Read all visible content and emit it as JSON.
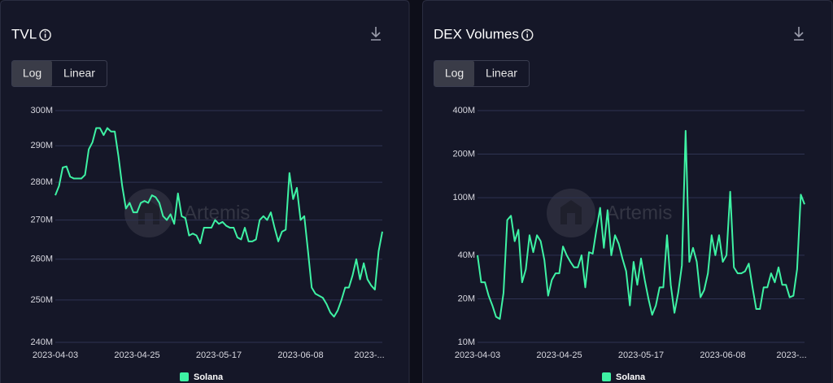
{
  "chart_data": [
    {
      "type": "line",
      "title": "TVL",
      "toggle": [
        "Log",
        "Linear"
      ],
      "log_scale": true,
      "grid": true,
      "watermark": "Artemis",
      "categories": [
        "2023-04-03",
        null,
        null,
        null,
        null,
        null,
        null,
        null,
        null,
        null,
        null,
        null,
        null,
        null,
        null,
        null,
        null,
        null,
        null,
        null,
        null,
        null,
        "2023-04-25",
        null,
        null,
        null,
        null,
        null,
        null,
        null,
        null,
        null,
        null,
        null,
        null,
        null,
        null,
        null,
        null,
        null,
        null,
        null,
        null,
        null,
        "2023-05-17",
        null,
        null,
        null,
        null,
        null,
        null,
        null,
        null,
        null,
        null,
        null,
        null,
        null,
        null,
        null,
        null,
        null,
        null,
        null,
        null,
        null,
        "2023-06-08",
        null,
        null,
        null,
        null,
        null,
        null,
        null,
        null,
        null,
        null,
        null,
        null,
        null,
        null,
        null,
        null,
        null,
        null,
        null,
        null,
        null,
        "2023-..."
      ],
      "series": [
        {
          "name": "Solana",
          "color": "#3ef2a4",
          "values": [
            276500000.0,
            279000000.0,
            284000000.0,
            284300000.0,
            281500000.0,
            281000000.0,
            281000000.0,
            281000000.0,
            282000000.0,
            289000000.0,
            291000000.0,
            295000000.0,
            295000000.0,
            293000000.0,
            295000000.0,
            294000000.0,
            294000000.0,
            287000000.0,
            279000000.0,
            273000000.0,
            274500000.0,
            272000000.0,
            272000000.0,
            274500000.0,
            275000000.0,
            274500000.0,
            276500000.0,
            276000000.0,
            274500000.0,
            271000000.0,
            270000000.0,
            271500000.0,
            269000000.0,
            277000000.0,
            271000000.0,
            270500000.0,
            266000000.0,
            266500000.0,
            266000000.0,
            264000000.0,
            268000000.0,
            268000000.0,
            268000000.0,
            270000000.0,
            269000000.0,
            269500000.0,
            268500000.0,
            268000000.0,
            268000000.0,
            265500000.0,
            265000000.0,
            268000000.0,
            264500000.0,
            264500000.0,
            265000000.0,
            270000000.0,
            271000000.0,
            270000000.0,
            272000000.0,
            268000000.0,
            264500000.0,
            267000000.0,
            267500000.0,
            282500000.0,
            275500000.0,
            278500000.0,
            270000000.0,
            271000000.0,
            262000000.0,
            253000000.0,
            251500000.0,
            251000000.0,
            250500000.0,
            249000000.0,
            247000000.0,
            246000000.0,
            247500000.0,
            250000000.0,
            253000000.0,
            253000000.0,
            256000000.0,
            260000000.0,
            255000000.0,
            259000000.0,
            255000000.0,
            253500000.0,
            252500000.0,
            262000000.0,
            267000000.0
          ]
        }
      ],
      "ylim": [
        240000000.0,
        300000000.0
      ],
      "yticks": [
        {
          "value": 240000000.0,
          "label": "240M"
        },
        {
          "value": 250000000.0,
          "label": "250M"
        },
        {
          "value": 260000000.0,
          "label": "260M"
        },
        {
          "value": 270000000.0,
          "label": "270M"
        },
        {
          "value": 280000000.0,
          "label": "280M"
        },
        {
          "value": 290000000.0,
          "label": "290M"
        },
        {
          "value": 300000000.0,
          "label": "300M"
        }
      ]
    },
    {
      "type": "line",
      "title": "DEX Volumes",
      "toggle": [
        "Log",
        "Linear"
      ],
      "log_scale": true,
      "grid": true,
      "watermark": "Artemis",
      "categories": [
        "2023-04-03",
        null,
        null,
        null,
        null,
        null,
        null,
        null,
        null,
        null,
        null,
        null,
        null,
        null,
        null,
        null,
        null,
        null,
        null,
        null,
        null,
        null,
        "2023-04-25",
        null,
        null,
        null,
        null,
        null,
        null,
        null,
        null,
        null,
        null,
        null,
        null,
        null,
        null,
        null,
        null,
        null,
        null,
        null,
        null,
        null,
        "2023-05-17",
        null,
        null,
        null,
        null,
        null,
        null,
        null,
        null,
        null,
        null,
        null,
        null,
        null,
        null,
        null,
        null,
        null,
        null,
        null,
        null,
        null,
        "2023-06-08",
        null,
        null,
        null,
        null,
        null,
        null,
        null,
        null,
        null,
        null,
        null,
        null,
        null,
        null,
        null,
        null,
        null,
        null,
        null,
        null,
        null,
        "2023-..."
      ],
      "series": [
        {
          "name": "Solana",
          "color": "#3ef2a4",
          "values": [
            40000000.0,
            26000000.0,
            26000000.0,
            21000000.0,
            18000000.0,
            15000000.0,
            14500000.0,
            22000000.0,
            70000000.0,
            75000000.0,
            50000000.0,
            60000000.0,
            26000000.0,
            32000000.0,
            55000000.0,
            42000000.0,
            55000000.0,
            50000000.0,
            37000000.0,
            21000000.0,
            27000000.0,
            30000000.0,
            30000000.0,
            46000000.0,
            40000000.0,
            36000000.0,
            33000000.0,
            33000000.0,
            40000000.0,
            24000000.0,
            42000000.0,
            41000000.0,
            60000000.0,
            85000000.0,
            45000000.0,
            82000000.0,
            40000000.0,
            55000000.0,
            48000000.0,
            38000000.0,
            31000000.0,
            18000000.0,
            36000000.0,
            25000000.0,
            38000000.0,
            27000000.0,
            20000000.0,
            15500000.0,
            18000000.0,
            24000000.0,
            24000000.0,
            55000000.0,
            25000000.0,
            16000000.0,
            22000000.0,
            34000000.0,
            290000000.0,
            36000000.0,
            45000000.0,
            36000000.0,
            20500000.0,
            23000000.0,
            30000000.0,
            55000000.0,
            40000000.0,
            55000000.0,
            36000000.0,
            40000000.0,
            110000000.0,
            33000000.0,
            30000000.0,
            30000000.0,
            31000000.0,
            35000000.0,
            24000000.0,
            17000000.0,
            17000000.0,
            24000000.0,
            24000000.0,
            30000000.0,
            26000000.0,
            33000000.0,
            25000000.0,
            25000000.0,
            20500000.0,
            21000000.0,
            32000000.0,
            105000000.0,
            90000000.0
          ]
        }
      ],
      "ylim": [
        10000000.0,
        400000000.0
      ],
      "yticks": [
        {
          "value": 10000000.0,
          "label": "10M"
        },
        {
          "value": 20000000.0,
          "label": "20M"
        },
        {
          "value": 40000000.0,
          "label": "40M"
        },
        {
          "value": 100000000.0,
          "label": "100M"
        },
        {
          "value": 200000000.0,
          "label": "200M"
        },
        {
          "value": 400000000.0,
          "label": "400M"
        }
      ]
    }
  ]
}
